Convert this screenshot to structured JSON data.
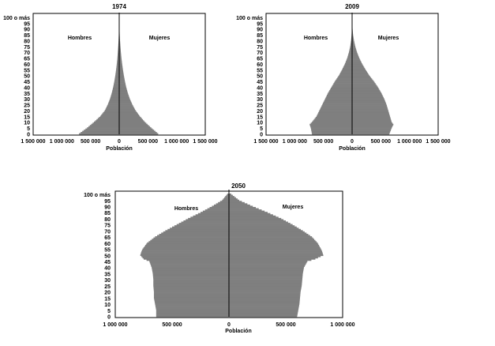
{
  "chart_data": [
    {
      "type": "bar",
      "orientation": "horizontal-pyramid",
      "title": "1974",
      "xlabel": "Población",
      "left_label": "Hombres",
      "right_label": "Mujeres",
      "x_ticks": [
        "1 500 000",
        "1 000 000",
        "500 000",
        "0",
        "500 000",
        "1 000 000",
        "1 500 000"
      ],
      "x_tick_values": [
        -1500000,
        -1000000,
        -500000,
        0,
        500000,
        1000000,
        1500000
      ],
      "xlim": [
        -1500000,
        1500000
      ],
      "y_ticks": [
        "0",
        "5",
        "10",
        "15",
        "20",
        "25",
        "30",
        "35",
        "40",
        "45",
        "50",
        "55",
        "60",
        "65",
        "70",
        "75",
        "80",
        "85",
        "90",
        "95",
        "100 o más"
      ],
      "age_step": 1,
      "age_max": 100,
      "profile_age": [
        0,
        5,
        10,
        15,
        20,
        25,
        30,
        35,
        40,
        45,
        50,
        55,
        60,
        65,
        70,
        75,
        80,
        85,
        90,
        95,
        100
      ],
      "hombres": [
        700000,
        560000,
        440000,
        330000,
        250000,
        200000,
        160000,
        130000,
        105000,
        85000,
        68000,
        54000,
        42000,
        32000,
        24000,
        17000,
        11000,
        7000,
        4000,
        2000,
        1000
      ],
      "mujeres": [
        680000,
        560000,
        450000,
        360000,
        285000,
        230000,
        185000,
        150000,
        122000,
        100000,
        81000,
        65000,
        51000,
        39000,
        29000,
        21000,
        14000,
        9000,
        5000,
        2500,
        1200
      ],
      "colors": {
        "bar": "#7f7f7f",
        "axis": "#000000"
      }
    },
    {
      "type": "bar",
      "orientation": "horizontal-pyramid",
      "title": "2009",
      "xlabel": "Población",
      "left_label": "Hombres",
      "right_label": "Mujeres",
      "x_ticks": [
        "1 500 000",
        "1 000 000",
        "500 000",
        "0",
        "500 000",
        "1 000 000",
        "1 500 000"
      ],
      "x_tick_values": [
        -1500000,
        -1000000,
        -500000,
        0,
        500000,
        1000000,
        1500000
      ],
      "xlim": [
        -1500000,
        1500000
      ],
      "y_ticks": [
        "0",
        "5",
        "10",
        "15",
        "20",
        "25",
        "30",
        "35",
        "40",
        "45",
        "50",
        "55",
        "60",
        "65",
        "70",
        "75",
        "80",
        "85",
        "90",
        "95",
        "100 o más"
      ],
      "age_step": 1,
      "age_max": 100,
      "profile_age": [
        0,
        5,
        8,
        10,
        15,
        20,
        25,
        30,
        35,
        40,
        45,
        50,
        55,
        60,
        65,
        70,
        75,
        80,
        85,
        90,
        95,
        100
      ],
      "hombres": [
        700000,
        720000,
        740000,
        700000,
        620000,
        570000,
        520000,
        470000,
        420000,
        360000,
        300000,
        230000,
        175000,
        125000,
        85000,
        55000,
        33000,
        18000,
        9000,
        4000,
        1500,
        500
      ],
      "mujeres": [
        650000,
        690000,
        720000,
        690000,
        660000,
        630000,
        600000,
        560000,
        510000,
        450000,
        380000,
        300000,
        235000,
        175000,
        125000,
        85000,
        55000,
        33000,
        17000,
        8000,
        3000,
        800
      ],
      "colors": {
        "bar": "#7f7f7f",
        "axis": "#000000"
      }
    },
    {
      "type": "bar",
      "orientation": "horizontal-pyramid",
      "title": "2050",
      "xlabel": "Población",
      "left_label": "Hombres",
      "right_label": "Mujeres",
      "x_ticks": [
        "1 000 000",
        "500 000",
        "0",
        "500 000",
        "1 000 000"
      ],
      "x_tick_values": [
        -1000000,
        -500000,
        0,
        500000,
        1000000
      ],
      "xlim": [
        -1000000,
        1000000
      ],
      "y_ticks": [
        "0",
        "5",
        "10",
        "15",
        "20",
        "25",
        "30",
        "35",
        "40",
        "45",
        "50",
        "55",
        "60",
        "65",
        "70",
        "75",
        "80",
        "85",
        "90",
        "95",
        "100 o más"
      ],
      "age_step": 1,
      "age_max": 100,
      "profile_age": [
        0,
        5,
        10,
        15,
        20,
        25,
        30,
        35,
        40,
        45,
        47,
        50,
        53,
        55,
        60,
        65,
        70,
        75,
        80,
        85,
        90,
        95,
        100
      ],
      "hombres": [
        640000,
        640000,
        650000,
        660000,
        660000,
        665000,
        665000,
        670000,
        680000,
        700000,
        750000,
        780000,
        770000,
        760000,
        720000,
        650000,
        560000,
        460000,
        360000,
        250000,
        150000,
        60000,
        15000
      ],
      "mujeres": [
        600000,
        610000,
        620000,
        625000,
        630000,
        640000,
        645000,
        650000,
        660000,
        690000,
        760000,
        830000,
        820000,
        810000,
        780000,
        730000,
        650000,
        560000,
        460000,
        340000,
        210000,
        90000,
        20000
      ],
      "colors": {
        "bar": "#7f7f7f",
        "axis": "#000000"
      }
    }
  ]
}
